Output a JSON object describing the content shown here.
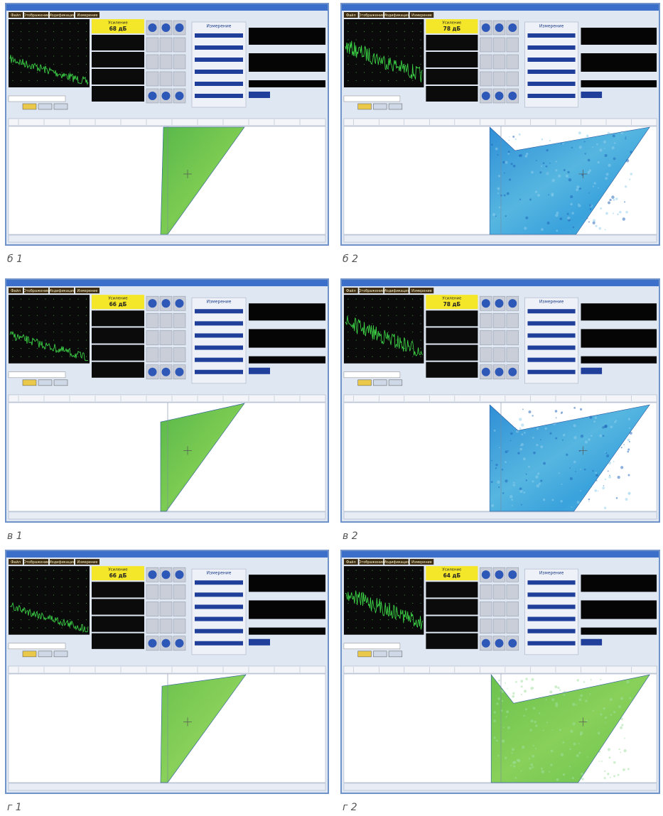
{
  "menu": [
    "Файл",
    "Отображение",
    "Модификация",
    "Измерение"
  ],
  "gain_label": "Усиление",
  "measure_label": "Измерение",
  "panels": [
    {
      "caption": "б 1",
      "gain": "68 дБ"
    },
    {
      "caption": "б 2",
      "gain": "78 дБ"
    },
    {
      "caption": "в 1",
      "gain": "66 дБ"
    },
    {
      "caption": "в 2",
      "gain": "78 дБ"
    },
    {
      "caption": "г 1",
      "gain": "66 дБ"
    },
    {
      "caption": "г 2",
      "gain": "64 дБ"
    }
  ]
}
